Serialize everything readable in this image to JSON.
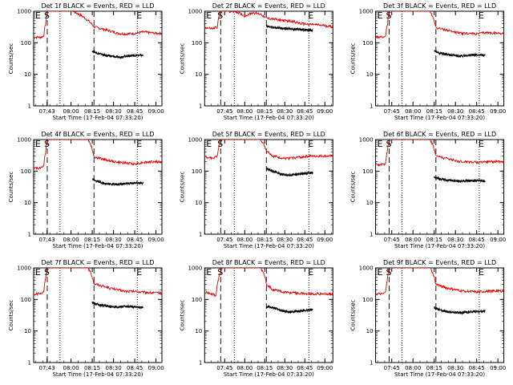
{
  "colors": {
    "events": "#000000",
    "lld": "#e00000",
    "axes": "#000000",
    "background": "#ffffff"
  },
  "ytick_labels": [
    "1",
    "10",
    "100",
    "1000"
  ],
  "ylabel": "Counts/sec",
  "xlabel": "Start Time (17-Feb-04 07:33:20)",
  "markers": {
    "start": "E",
    "s": "S",
    "end": "E"
  },
  "chart_data": [
    {
      "type": "line",
      "title": "Det 1f BLACK = Events, RED = LLD",
      "xlim": [
        7.56,
        9.07
      ],
      "x_ticks": [
        "07:43",
        "08:00",
        "08:15",
        "08:30",
        "08:45",
        "09:00"
      ],
      "x_tick_vals": [
        7.717,
        8.0,
        8.25,
        8.5,
        8.75,
        9.0
      ],
      "ylim": [
        1,
        1000
      ],
      "yscale": "log",
      "lines": {
        "dashed": [
          7.72,
          8.27
        ],
        "dotted": [
          7.87,
          8.78
        ]
      },
      "series": [
        {
          "color": "lld",
          "x": [
            7.56,
            7.65,
            7.68,
            7.7,
            7.72,
            7.74,
            7.9,
            8.02,
            8.27,
            8.4,
            8.55,
            8.65,
            8.75,
            8.85,
            9.0,
            9.07
          ],
          "y": [
            150,
            150,
            170,
            400,
            1000,
            1000,
            1000,
            1000,
            320,
            260,
            200,
            190,
            200,
            220,
            200,
            200
          ]
        },
        {
          "color": "events",
          "x": [
            8.25,
            8.3,
            8.4,
            8.55,
            8.65,
            8.75,
            8.85
          ],
          "y": [
            55,
            48,
            40,
            35,
            38,
            40,
            40
          ]
        }
      ]
    },
    {
      "type": "line",
      "title": "Det 2f BLACK = Events, RED = LLD",
      "xlim": [
        7.5,
        9.1
      ],
      "x_ticks": [
        "07:45",
        "08:00",
        "08:15",
        "08:30",
        "08:45",
        "09:00"
      ],
      "x_tick_vals": [
        7.75,
        8.0,
        8.25,
        8.5,
        8.75,
        9.0
      ],
      "ylim": [
        1,
        1000
      ],
      "yscale": "log",
      "lines": {
        "dashed": [
          7.7,
          8.27
        ],
        "dotted": [
          7.87,
          8.8
        ]
      },
      "series": [
        {
          "color": "lld",
          "x": [
            7.5,
            7.6,
            7.66,
            7.69,
            7.72,
            7.8,
            7.9,
            8.0,
            8.1,
            8.2,
            8.27,
            8.4,
            8.5,
            8.6,
            8.7,
            8.85,
            9.0,
            9.1
          ],
          "y": [
            300,
            280,
            320,
            900,
            1000,
            1000,
            950,
            700,
            900,
            800,
            600,
            550,
            500,
            480,
            400,
            380,
            350,
            320
          ]
        },
        {
          "color": "events",
          "x": [
            8.27,
            8.4,
            8.55,
            8.7,
            8.85
          ],
          "y": [
            330,
            300,
            280,
            260,
            250
          ]
        }
      ]
    },
    {
      "type": "line",
      "title": "Det 3f BLACK = Events, RED = LLD",
      "xlim": [
        7.56,
        9.07
      ],
      "x_ticks": [
        "07:45",
        "08:00",
        "08:15",
        "08:30",
        "08:45",
        "09:00"
      ],
      "x_tick_vals": [
        7.75,
        8.0,
        8.25,
        8.5,
        8.75,
        9.0
      ],
      "ylim": [
        1,
        1000
      ],
      "yscale": "log",
      "lines": {
        "dashed": [
          7.72,
          8.27
        ],
        "dotted": [
          7.87,
          8.78
        ]
      },
      "series": [
        {
          "color": "lld",
          "x": [
            7.56,
            7.65,
            7.68,
            7.7,
            7.72,
            7.8,
            8.0,
            8.2,
            8.27,
            8.4,
            8.55,
            8.65,
            8.75,
            8.85,
            9.0,
            9.07
          ],
          "y": [
            150,
            150,
            170,
            400,
            1000,
            1000,
            1000,
            1000,
            300,
            250,
            200,
            200,
            190,
            210,
            200,
            200
          ]
        },
        {
          "color": "events",
          "x": [
            8.25,
            8.3,
            8.4,
            8.55,
            8.65,
            8.75,
            8.85
          ],
          "y": [
            55,
            48,
            42,
            38,
            40,
            42,
            40
          ]
        }
      ]
    },
    {
      "type": "line",
      "title": "Det 4f BLACK = Events, RED = LLD",
      "xlim": [
        7.56,
        9.07
      ],
      "x_ticks": [
        "07:43",
        "08:00",
        "08:15",
        "08:30",
        "08:45",
        "09:00"
      ],
      "x_tick_vals": [
        7.717,
        8.0,
        8.25,
        8.5,
        8.75,
        9.0
      ],
      "ylim": [
        1,
        1000
      ],
      "yscale": "log",
      "lines": {
        "dashed": [
          7.72,
          8.27
        ],
        "dotted": [
          7.87,
          8.78
        ]
      },
      "series": [
        {
          "color": "lld",
          "x": [
            7.56,
            7.65,
            7.68,
            7.7,
            7.72,
            7.8,
            8.0,
            8.2,
            8.27,
            8.4,
            8.55,
            8.65,
            8.75,
            8.85,
            9.0,
            9.07
          ],
          "y": [
            120,
            130,
            150,
            400,
            1000,
            1000,
            1000,
            1000,
            280,
            230,
            190,
            180,
            170,
            190,
            200,
            190
          ]
        },
        {
          "color": "events",
          "x": [
            8.25,
            8.3,
            8.4,
            8.55,
            8.65,
            8.75,
            8.85
          ],
          "y": [
            55,
            48,
            40,
            38,
            40,
            42,
            42
          ]
        }
      ]
    },
    {
      "type": "line",
      "title": "Det 5f BLACK = Events, RED = LLD",
      "xlim": [
        7.5,
        9.1
      ],
      "x_ticks": [
        "07:45",
        "08:00",
        "08:15",
        "08:30",
        "08:45",
        "09:00"
      ],
      "x_tick_vals": [
        7.75,
        8.0,
        8.25,
        8.5,
        8.75,
        9.0
      ],
      "ylim": [
        1,
        1000
      ],
      "yscale": "log",
      "lines": {
        "dashed": [
          7.7,
          8.27
        ],
        "dotted": [
          7.87,
          8.8
        ]
      },
      "series": [
        {
          "color": "lld",
          "x": [
            7.5,
            7.6,
            7.66,
            7.69,
            7.72,
            7.8,
            7.9,
            8.0,
            8.1,
            8.2,
            8.27,
            8.35,
            8.5,
            8.65,
            8.8,
            8.95,
            9.1
          ],
          "y": [
            280,
            260,
            300,
            900,
            1000,
            1000,
            1000,
            1000,
            1000,
            1000,
            450,
            300,
            250,
            270,
            300,
            300,
            300
          ]
        },
        {
          "color": "events",
          "x": [
            8.27,
            8.35,
            8.45,
            8.55,
            8.65,
            8.75,
            8.85
          ],
          "y": [
            120,
            100,
            80,
            75,
            80,
            85,
            90
          ]
        }
      ]
    },
    {
      "type": "line",
      "title": "Det 6f BLACK = Events, RED = LLD",
      "xlim": [
        7.56,
        9.07
      ],
      "x_ticks": [
        "07:45",
        "08:00",
        "08:15",
        "08:30",
        "08:45",
        "09:00"
      ],
      "x_tick_vals": [
        7.75,
        8.0,
        8.25,
        8.5,
        8.75,
        9.0
      ],
      "ylim": [
        1,
        1000
      ],
      "yscale": "log",
      "lines": {
        "dashed": [
          7.72,
          8.27
        ],
        "dotted": [
          7.87,
          8.78
        ]
      },
      "series": [
        {
          "color": "lld",
          "x": [
            7.56,
            7.65,
            7.68,
            7.7,
            7.72,
            7.8,
            8.0,
            8.2,
            8.27,
            8.4,
            8.55,
            8.65,
            8.75,
            8.85,
            9.0,
            9.07
          ],
          "y": [
            160,
            160,
            180,
            500,
            1000,
            1000,
            1000,
            1000,
            300,
            250,
            200,
            200,
            190,
            200,
            200,
            200
          ]
        },
        {
          "color": "events",
          "x": [
            8.25,
            8.3,
            8.4,
            8.55,
            8.65,
            8.75,
            8.85
          ],
          "y": [
            65,
            58,
            52,
            48,
            50,
            50,
            48
          ]
        }
      ]
    },
    {
      "type": "line",
      "title": "Det 7f BLACK = Events, RED = LLD",
      "xlim": [
        7.56,
        9.07
      ],
      "x_ticks": [
        "07:43",
        "08:00",
        "08:15",
        "08:30",
        "08:45",
        "09:00"
      ],
      "x_tick_vals": [
        7.717,
        8.0,
        8.25,
        8.5,
        8.75,
        9.0
      ],
      "ylim": [
        1,
        1000
      ],
      "yscale": "log",
      "lines": {
        "dashed": [
          7.72,
          8.27
        ],
        "dotted": [
          7.87,
          8.78
        ]
      },
      "series": [
        {
          "color": "lld",
          "x": [
            7.56,
            7.65,
            7.68,
            7.7,
            7.72,
            7.8,
            8.0,
            8.2,
            8.27,
            8.4,
            8.55,
            8.65,
            8.75,
            8.85,
            9.0,
            9.07
          ],
          "y": [
            150,
            150,
            170,
            500,
            1000,
            1000,
            1000,
            1000,
            320,
            250,
            200,
            180,
            180,
            170,
            160,
            160
          ]
        },
        {
          "color": "events",
          "x": [
            8.25,
            8.3,
            8.4,
            8.55,
            8.65,
            8.75,
            8.85
          ],
          "y": [
            80,
            70,
            62,
            58,
            60,
            58,
            55
          ]
        }
      ]
    },
    {
      "type": "line",
      "title": "Det 8f BLACK = Events, RED = LLD",
      "xlim": [
        7.5,
        9.1
      ],
      "x_ticks": [
        "07:45",
        "08:00",
        "08:15",
        "08:30",
        "08:45",
        "09:00"
      ],
      "x_tick_vals": [
        7.75,
        8.0,
        8.25,
        8.5,
        8.75,
        9.0
      ],
      "ylim": [
        1,
        1000
      ],
      "yscale": "log",
      "lines": {
        "dashed": [
          7.7,
          8.27
        ],
        "dotted": [
          7.87,
          8.8
        ]
      },
      "series": [
        {
          "color": "lld",
          "x": [
            7.5,
            7.6,
            7.64,
            7.68,
            7.72,
            7.8,
            7.9,
            8.0,
            8.1,
            8.2,
            8.27,
            8.35,
            8.5,
            8.65,
            8.8,
            8.95,
            9.1
          ],
          "y": [
            170,
            150,
            130,
            500,
            1000,
            1000,
            1000,
            1000,
            1000,
            1000,
            300,
            200,
            170,
            160,
            150,
            150,
            150
          ]
        },
        {
          "color": "events",
          "x": [
            8.27,
            8.35,
            8.45,
            8.55,
            8.65,
            8.75,
            8.85
          ],
          "y": [
            60,
            55,
            45,
            40,
            42,
            45,
            48
          ]
        }
      ]
    },
    {
      "type": "line",
      "title": "Det 9f BLACK = Events, RED = LLD",
      "xlim": [
        7.56,
        9.07
      ],
      "x_ticks": [
        "07:45",
        "08:00",
        "08:15",
        "08:30",
        "08:45",
        "09:00"
      ],
      "x_tick_vals": [
        7.75,
        8.0,
        8.25,
        8.5,
        8.75,
        9.0
      ],
      "ylim": [
        1,
        1000
      ],
      "yscale": "log",
      "lines": {
        "dashed": [
          7.72,
          8.27
        ],
        "dotted": [
          7.87,
          8.78
        ]
      },
      "series": [
        {
          "color": "lld",
          "x": [
            7.56,
            7.65,
            7.68,
            7.7,
            7.72,
            7.8,
            8.0,
            8.2,
            8.27,
            8.4,
            8.55,
            8.65,
            8.75,
            8.85,
            9.0,
            9.07
          ],
          "y": [
            150,
            150,
            170,
            500,
            1000,
            1000,
            1000,
            1000,
            300,
            230,
            190,
            180,
            170,
            180,
            190,
            180
          ]
        },
        {
          "color": "events",
          "x": [
            8.25,
            8.3,
            8.4,
            8.55,
            8.65,
            8.75,
            8.85
          ],
          "y": [
            55,
            48,
            40,
            38,
            40,
            42,
            42
          ]
        }
      ]
    }
  ]
}
